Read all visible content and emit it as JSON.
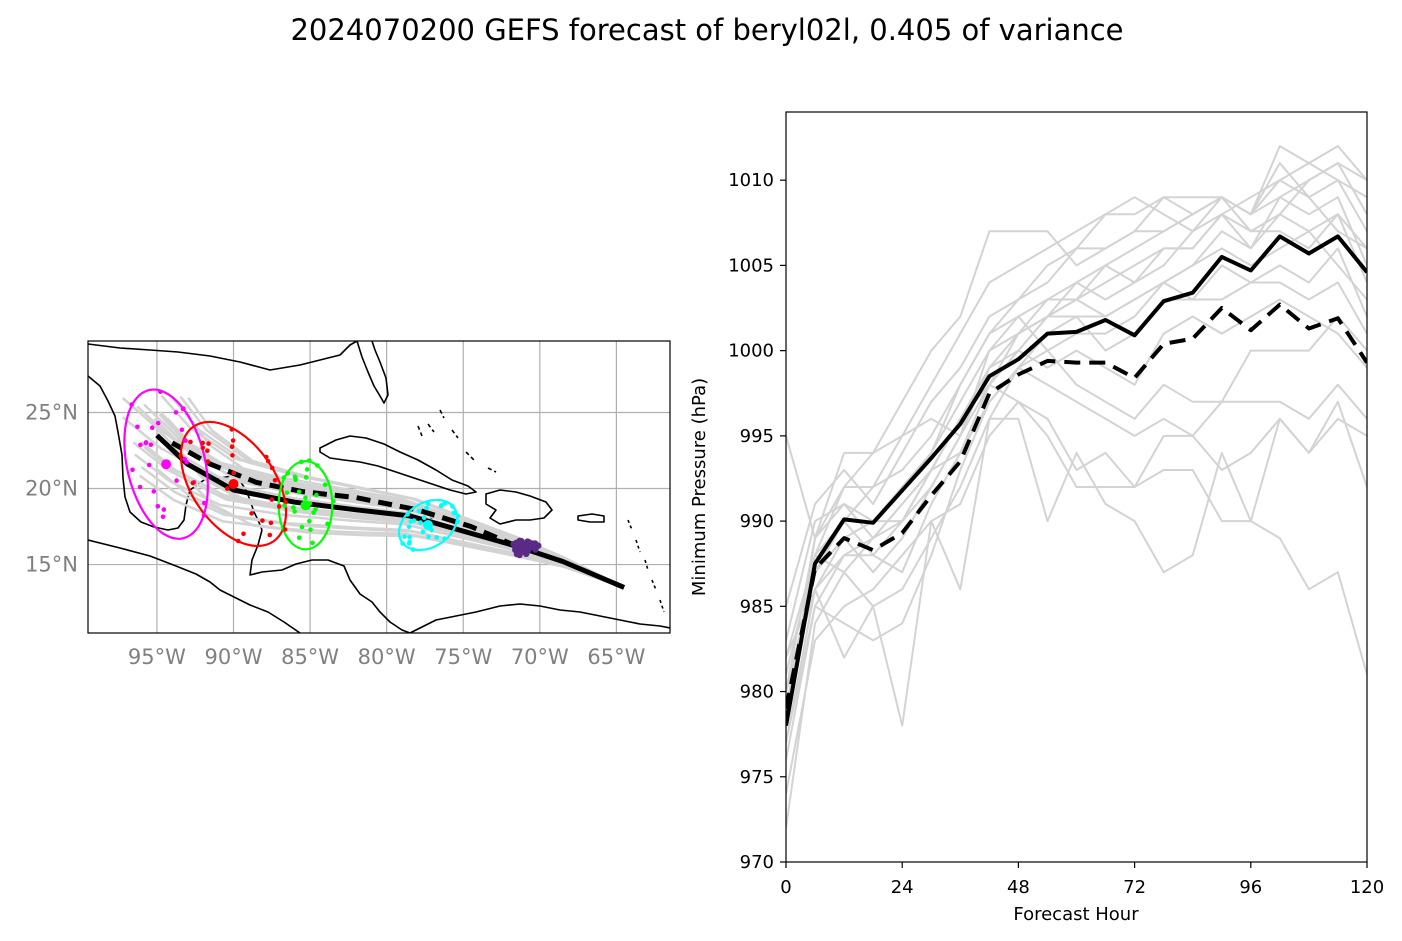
{
  "figure": {
    "title": "2024070200 GEFS forecast of beryl02l, 0.405 of variance"
  },
  "map": {
    "lon_range": [
      -99.5,
      -61.5
    ],
    "lat_range": [
      10.5,
      29.7
    ],
    "lon_ticks": [
      -95,
      -90,
      -85,
      -80,
      -75,
      -70,
      -65
    ],
    "lon_tick_labels": [
      "95°W",
      "90°W",
      "85°W",
      "80°W",
      "75°W",
      "70°W",
      "65°W"
    ],
    "lat_ticks": [
      25,
      20,
      15
    ],
    "lat_tick_labels": [
      "25°N",
      "20°N",
      "15°N"
    ],
    "grid": true,
    "coastline_color": "#000000",
    "member_track_color": "#d3d3d3",
    "ellipse_colors": [
      "#ff00ff",
      "#ff0000",
      "#00ff00",
      "#00ffff",
      "#5b2a86"
    ]
  },
  "chart_data": [
    {
      "type": "scatter",
      "panel": "track-map",
      "mean_track_solid": [
        [
          -64.5,
          13.5
        ],
        [
          -68.5,
          15.2
        ],
        [
          -71.5,
          16.2
        ],
        [
          -75,
          17.2
        ],
        [
          -78.5,
          18.2
        ],
        [
          -82,
          18.6
        ],
        [
          -86,
          19.1
        ],
        [
          -90,
          19.9
        ],
        [
          -93,
          21.6
        ],
        [
          -95,
          23.5
        ]
      ],
      "mean_track_dashed": [
        [
          -71.5,
          16.2
        ],
        [
          -74.5,
          17.5
        ],
        [
          -78,
          18.6
        ],
        [
          -82,
          19.4
        ],
        [
          -85.5,
          19.8
        ],
        [
          -88.5,
          20.4
        ],
        [
          -91.5,
          21.6
        ],
        [
          -94,
          23.0
        ]
      ],
      "ellipses": [
        {
          "center": [
            -94.4,
            21.6
          ],
          "semi_axes": [
            2.55,
            5.0
          ],
          "rotation": -13,
          "color": "#ff00ff"
        },
        {
          "center": [
            -90.0,
            20.3
          ],
          "semi_axes": [
            2.7,
            4.6
          ],
          "rotation": -35,
          "color": "#ff0000"
        },
        {
          "center": [
            -85.3,
            18.9
          ],
          "semi_axes": [
            1.75,
            2.9
          ],
          "rotation": 0,
          "color": "#00ff00"
        },
        {
          "center": [
            -77.3,
            17.6
          ],
          "semi_axes": [
            1.45,
            2.05
          ],
          "rotation": 58,
          "color": "#00ffff"
        },
        {
          "center": [
            -71.0,
            16.1
          ],
          "semi_axes": [
            0.9,
            0.5
          ],
          "rotation": 0,
          "color": "#5b2a86"
        }
      ]
    },
    {
      "type": "line",
      "panel": "intensity",
      "xlabel": "Forecast Hour",
      "ylabel": "Minimum Pressure (hPa)",
      "xlim": [
        0,
        120
      ],
      "ylim": [
        970,
        1014
      ],
      "xticks": [
        0,
        24,
        48,
        72,
        96,
        120
      ],
      "yticks": [
        970,
        975,
        980,
        985,
        990,
        995,
        1000,
        1005,
        1010
      ],
      "x": [
        0,
        6,
        12,
        18,
        24,
        30,
        36,
        42,
        48,
        54,
        60,
        66,
        72,
        78,
        84,
        90,
        96,
        102,
        108,
        114,
        120
      ],
      "series": [
        {
          "values": [
            978,
            987.5,
            990.1,
            989.9,
            991.8,
            993.7,
            995.7,
            998.5,
            999.5,
            1001,
            1001.1,
            1001.8,
            1000.9,
            1002.9,
            1003.4,
            1005.5,
            1004.7,
            1006.7,
            1005.7,
            1006.7,
            1004.6
          ],
          "color": "#000000",
          "style": "solid",
          "width": 4
        },
        {
          "values": [
            979,
            987.2,
            989.0,
            988.3,
            989.3,
            991.5,
            993.5,
            997.5,
            998.6,
            999.4,
            999.3,
            999.3,
            998.4,
            1000.4,
            1000.7,
            1002.5,
            1001.2,
            1002.7,
            1001.3,
            1001.9,
            999.3
          ],
          "color": "#000000",
          "style": "dashed",
          "width": 4
        },
        {
          "values": [
            985,
            991,
            993,
            991,
            994,
            997,
            999,
            1002,
            1003,
            1005,
            1006,
            1006,
            1007,
            1007,
            1008,
            1009,
            1008,
            1009,
            1010,
            1011,
            1010
          ],
          "color": "#d3d3d3",
          "style": "solid",
          "width": 2
        },
        {
          "values": [
            982,
            988,
            992,
            992,
            995,
            998,
            1001,
            1004,
            1005,
            1006,
            1007,
            1008,
            1008,
            1009,
            1009,
            1009,
            1008,
            1012,
            1011,
            1012,
            1010
          ],
          "color": "#d3d3d3",
          "style": "solid",
          "width": 2
        },
        {
          "values": [
            980,
            989,
            994,
            994,
            997,
            1000,
            1002,
            1007,
            1007,
            1007,
            1005,
            1006,
            1007,
            1009,
            1008,
            1009,
            1007,
            1008,
            1010,
            1011,
            1008
          ],
          "color": "#d3d3d3",
          "style": "solid",
          "width": 2
        },
        {
          "values": [
            979,
            988,
            990,
            992,
            993,
            995,
            998,
            1001,
            1003,
            1004,
            1006,
            1008,
            1009,
            1008,
            1007,
            1009,
            1008,
            1011,
            1009,
            1007,
            1006
          ],
          "color": "#d3d3d3",
          "style": "solid",
          "width": 2
        },
        {
          "values": [
            978,
            987,
            989,
            990,
            992,
            994,
            997,
            1000,
            1002,
            1003,
            1004,
            1003,
            1004,
            1005,
            1007,
            1008,
            1006,
            1009,
            1008,
            1009,
            1005
          ],
          "color": "#d3d3d3",
          "style": "solid",
          "width": 2
        },
        {
          "values": [
            983,
            990,
            991,
            989,
            990,
            993,
            996,
            999,
            1001,
            1002,
            1004,
            1005,
            1004,
            1006,
            1006,
            1008,
            1007,
            1007,
            1006,
            1008,
            1004
          ],
          "color": "#d3d3d3",
          "style": "solid",
          "width": 2
        },
        {
          "values": [
            977,
            986,
            988,
            988,
            990,
            992,
            995,
            998,
            1000,
            1002,
            1003,
            1002,
            1003,
            1004,
            1005,
            1006,
            1005,
            1006,
            1007,
            1005,
            1003
          ],
          "color": "#d3d3d3",
          "style": "solid",
          "width": 2
        },
        {
          "values": [
            981,
            988,
            987,
            985,
            986,
            989,
            992,
            996,
            999,
            1000,
            1001,
            1001,
            1002,
            1004,
            1003,
            1005,
            1004,
            1005,
            1004,
            1006,
            1002
          ],
          "color": "#d3d3d3",
          "style": "solid",
          "width": 2
        },
        {
          "values": [
            976,
            985,
            988,
            989,
            991,
            993,
            994,
            997,
            999,
            1001,
            1002,
            1000,
            1001,
            1003,
            1003,
            1003,
            1004,
            1004,
            1003,
            1004,
            1001
          ],
          "color": "#d3d3d3",
          "style": "solid",
          "width": 2
        },
        {
          "values": [
            980,
            986,
            989,
            987,
            989,
            992,
            995,
            999,
            1000,
            999,
            1000,
            999,
            998,
            1001,
            1002,
            1001,
            1002,
            1003,
            1002,
            1001,
            999
          ],
          "color": "#d3d3d3",
          "style": "solid",
          "width": 2
        },
        {
          "values": [
            978,
            989,
            991,
            990,
            992,
            994,
            998,
            1001,
            1002,
            1000,
            998,
            997,
            996,
            998,
            997,
            997,
            997,
            997,
            996,
            998,
            996
          ],
          "color": "#d3d3d3",
          "style": "solid",
          "width": 2
        },
        {
          "values": [
            977,
            985,
            984,
            983,
            984,
            988,
            993,
            997,
            999,
            998,
            997,
            996,
            995,
            996,
            995,
            993,
            994,
            996,
            994,
            996,
            995
          ],
          "color": "#d3d3d3",
          "style": "solid",
          "width": 2
        },
        {
          "values": [
            974,
            983,
            985,
            986,
            988,
            990,
            991,
            995,
            997,
            996,
            993,
            994,
            992,
            993,
            993,
            990,
            990,
            996,
            994,
            997,
            992
          ],
          "color": "#d3d3d3",
          "style": "solid",
          "width": 2
        },
        {
          "values": [
            982,
            986,
            982,
            985,
            978,
            990,
            986,
            996,
            996,
            990,
            994,
            991,
            990,
            987,
            988,
            994,
            990,
            989,
            986,
            987,
            981
          ],
          "color": "#d3d3d3",
          "style": "solid",
          "width": 2
        },
        {
          "values": [
            979,
            987,
            989,
            990,
            990,
            993,
            996,
            998,
            997,
            995,
            992,
            992,
            992,
            995,
            995,
            997,
            1000,
            1000,
            1000,
            1002,
            1000
          ],
          "color": "#d3d3d3",
          "style": "solid",
          "width": 2
        },
        {
          "values": [
            995,
            989,
            992,
            994,
            995,
            996,
            995,
            1000,
            1001,
            1002,
            1003,
            1004,
            1005,
            1006,
            1006,
            1008,
            1009,
            1010,
            1011,
            1010,
            1009
          ],
          "color": "#d3d3d3",
          "style": "solid",
          "width": 2
        },
        {
          "values": [
            972,
            984,
            987,
            989,
            991,
            993,
            996,
            998,
            1001,
            1003,
            1003,
            1005,
            1006,
            1007,
            1008,
            1009,
            1008,
            1010,
            1009,
            1010,
            1007
          ],
          "color": "#d3d3d3",
          "style": "solid",
          "width": 2
        },
        {
          "values": [
            980,
            987,
            990,
            988,
            987,
            991,
            994,
            998,
            1000,
            1002,
            1002,
            1002,
            1003,
            1004,
            1005,
            1007,
            1006,
            1008,
            1007,
            1008,
            1006
          ],
          "color": "#d3d3d3",
          "style": "solid",
          "width": 2
        }
      ]
    }
  ]
}
